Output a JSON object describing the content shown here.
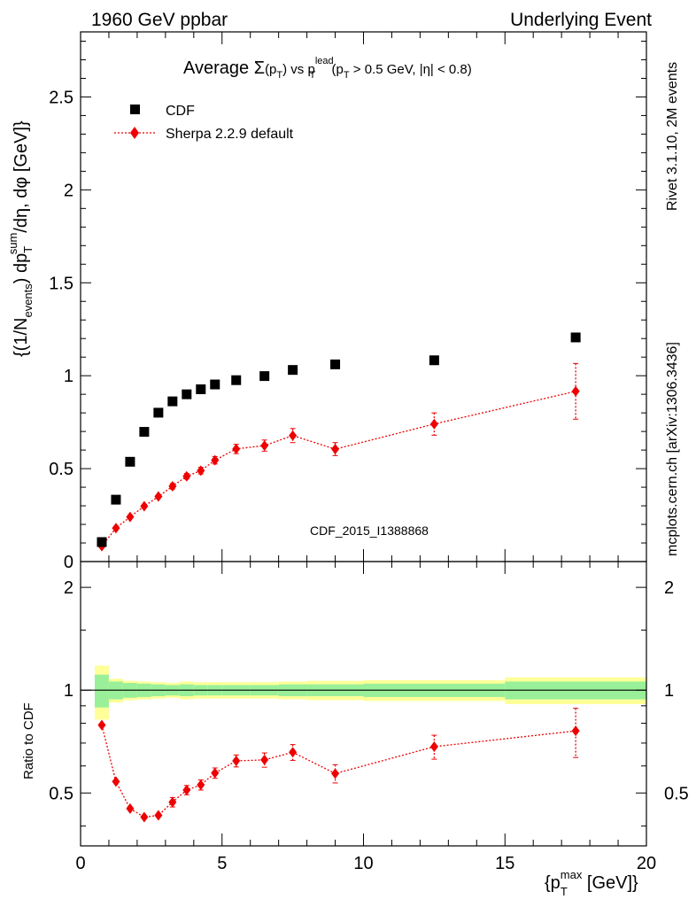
{
  "header": {
    "left": "1960 GeV ppbar",
    "right": "Underlying Event"
  },
  "side_labels": {
    "rivet": "Rivet 3.1.10,  2M events",
    "mcplots": "mcplots.cern.ch [arXiv:1306.3436]"
  },
  "watermark": "CDF_2015_I1388868",
  "chart_data": [
    {
      "type": "scatter",
      "title": "Average Σ(pT) vs pT^lead (pT > 0.5 GeV, |η| < 0.8)",
      "title_parts": {
        "prefix": "Average ",
        "sigma": "Σ",
        "pt_open": "(p",
        "pt_sub": "T",
        "pt_close": ")",
        "vs": " vs p",
        "lead_sup": "lead",
        "lead_sub": "T",
        "cut_open": " (p",
        "cut_sub": "T",
        "cut_close": " > 0.5 GeV, |η| < 0.8)"
      },
      "ylabel": "{(1/Nevents) dpTsum/dη, dφ [GeV]}",
      "ylabel_parts": {
        "a": "{(1/N",
        "a_sub": "events",
        "b": ") dp",
        "b_sub": "T",
        "b_sup": "sum",
        "c": "/dη, dφ [GeV]}"
      },
      "xlim": [
        0,
        20
      ],
      "ylim": [
        0,
        2.85
      ],
      "yticks": [
        0,
        0.5,
        1,
        1.5,
        2,
        2.5
      ],
      "ytick_labels": [
        "0",
        "0.5",
        "1",
        "1.5",
        "2",
        "2.5"
      ],
      "legend_position": "top-left",
      "series": [
        {
          "name": "CDF",
          "color": "#000000",
          "marker": "square",
          "x": [
            0.75,
            1.25,
            1.75,
            2.25,
            2.75,
            3.25,
            3.75,
            4.25,
            4.75,
            5.5,
            6.5,
            7.5,
            9.0,
            12.5,
            17.5
          ],
          "y": [
            0.105,
            0.333,
            0.537,
            0.698,
            0.801,
            0.862,
            0.9,
            0.927,
            0.953,
            0.976,
            0.998,
            1.031,
            1.061,
            1.083,
            1.206
          ]
        },
        {
          "name": "Sherpa 2.2.9 default",
          "color": "#ee0000",
          "marker": "diamond",
          "x": [
            0.75,
            1.25,
            1.75,
            2.25,
            2.75,
            3.25,
            3.75,
            4.25,
            4.75,
            5.5,
            6.5,
            7.5,
            9.0,
            12.5,
            17.5
          ],
          "y": [
            0.083,
            0.18,
            0.24,
            0.298,
            0.35,
            0.405,
            0.459,
            0.489,
            0.545,
            0.606,
            0.624,
            0.678,
            0.605,
            0.74,
            0.916
          ],
          "yerr": [
            0.008,
            0.012,
            0.012,
            0.012,
            0.012,
            0.015,
            0.015,
            0.018,
            0.02,
            0.025,
            0.03,
            0.038,
            0.035,
            0.06,
            0.15
          ]
        }
      ]
    },
    {
      "type": "scatter",
      "ylabel": "Ratio to CDF",
      "xlabel": "{pTmax [GeV]}",
      "xlabel_parts": {
        "a": "{p",
        "sub": "T",
        "sup": "max",
        "b": " [GeV]}"
      },
      "xlim": [
        0,
        20
      ],
      "ylim": [
        0.35,
        2.38
      ],
      "xticks": [
        0,
        5,
        10,
        15,
        20
      ],
      "xtick_labels": [
        "0",
        "5",
        "10",
        "15",
        "20"
      ],
      "yticks": [
        0.5,
        1,
        2
      ],
      "ytick_labels": [
        "0.5",
        "1",
        "2"
      ],
      "reference_line": 1,
      "uncertainty_bands": {
        "edges": [
          0.5,
          1.0,
          1.5,
          2.0,
          2.5,
          3.0,
          3.5,
          4.0,
          4.5,
          5.0,
          6.0,
          7.0,
          8.0,
          10.0,
          15.0,
          20.0
        ],
        "inner_color": "#99f099",
        "outer_color": "#ffff99",
        "inner_half": [
          0.11,
          0.06,
          0.05,
          0.045,
          0.04,
          0.035,
          0.04,
          0.035,
          0.035,
          0.035,
          0.035,
          0.04,
          0.04,
          0.045,
          0.06
        ],
        "outer_half": [
          0.18,
          0.08,
          0.065,
          0.06,
          0.055,
          0.05,
          0.06,
          0.055,
          0.055,
          0.055,
          0.055,
          0.06,
          0.065,
          0.07,
          0.09
        ]
      },
      "series": [
        {
          "name": "Sherpa 2.2.9 default",
          "color": "#ee0000",
          "marker": "diamond",
          "x": [
            0.75,
            1.25,
            1.75,
            2.25,
            2.75,
            3.25,
            3.75,
            4.25,
            4.75,
            5.5,
            6.5,
            7.5,
            9.0,
            12.5,
            17.5
          ],
          "y": [
            0.79,
            0.54,
            0.45,
            0.425,
            0.43,
            0.47,
            0.51,
            0.528,
            0.572,
            0.621,
            0.625,
            0.658,
            0.57,
            0.683,
            0.76
          ],
          "yerr": [
            0.01,
            0.012,
            0.012,
            0.012,
            0.012,
            0.015,
            0.016,
            0.018,
            0.02,
            0.025,
            0.03,
            0.035,
            0.035,
            0.055,
            0.125
          ]
        }
      ]
    }
  ]
}
